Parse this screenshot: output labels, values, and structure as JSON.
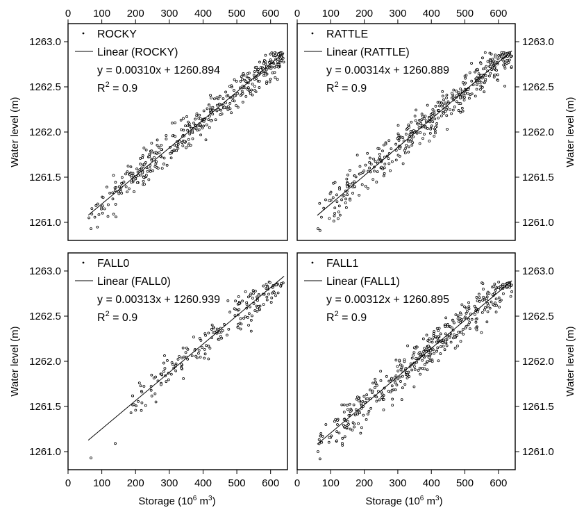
{
  "figure": {
    "x_axis_title": "Storage (10",
    "x_axis_title_sup": "6",
    "x_axis_title_unit": " m",
    "x_axis_title_sup2": "3",
    "x_axis_title_end": ")",
    "y_axis_title": "Water level (m)"
  },
  "chart_data": [
    {
      "type": "scatter",
      "panel": "ROCKY",
      "series": [
        {
          "name": "ROCKY",
          "kind": "points",
          "n_points": 420
        },
        {
          "name": "Linear (ROCKY)",
          "kind": "trendline",
          "slope": 0.0031,
          "intercept": 1260.894
        }
      ],
      "equation_text": "y = 0.00310x + 1260.894",
      "r2_text": "= 0.9",
      "xlim": [
        0,
        650
      ],
      "ylim": [
        1260.8,
        1263.2
      ],
      "x_ticks": [
        0,
        100,
        200,
        300,
        400,
        500,
        600
      ],
      "y_ticks": [
        1261.0,
        1261.5,
        1262.0,
        1262.5,
        1263.0
      ],
      "x_range_data": [
        60,
        640
      ],
      "extra_points": [
        [
          62,
          1261.05
        ],
        [
          68,
          1260.93
        ],
        [
          108,
          1261.15
        ],
        [
          115,
          1261.39
        ],
        [
          135,
          1261.09
        ]
      ],
      "legend_position": "top-left"
    },
    {
      "type": "scatter",
      "panel": "RATTLE",
      "series": [
        {
          "name": "RATTLE",
          "kind": "points",
          "n_points": 420
        },
        {
          "name": "Linear (RATTLE)",
          "kind": "trendline",
          "slope": 0.00314,
          "intercept": 1260.889
        }
      ],
      "equation_text": "y = 0.00314x + 1260.889",
      "r2_text": "= 0.9",
      "xlim": [
        0,
        650
      ],
      "ylim": [
        1260.8,
        1263.2
      ],
      "x_ticks": [
        0,
        100,
        200,
        300,
        400,
        500,
        600
      ],
      "y_ticks": [
        1261.0,
        1261.5,
        1262.0,
        1262.5,
        1263.0
      ],
      "x_range_data": [
        60,
        640
      ],
      "extra_points": [
        [
          62,
          1260.93
        ],
        [
          68,
          1260.91
        ],
        [
          112,
          1261.1
        ],
        [
          128,
          1261.08
        ],
        [
          140,
          1261.3
        ]
      ],
      "legend_position": "top-left"
    },
    {
      "type": "scatter",
      "panel": "FALL0",
      "series": [
        {
          "name": "FALL0",
          "kind": "points",
          "n_points": 200
        },
        {
          "name": "Linear (FALL0)",
          "kind": "trendline",
          "slope": 0.00313,
          "intercept": 1260.939
        }
      ],
      "equation_text": "y = 0.00313x + 1260.939",
      "r2_text": "= 0.9",
      "xlim": [
        0,
        650
      ],
      "ylim": [
        1260.8,
        1263.2
      ],
      "x_ticks": [
        0,
        100,
        200,
        300,
        400,
        500,
        600
      ],
      "y_ticks": [
        1261.0,
        1261.5,
        1262.0,
        1262.5,
        1263.0
      ],
      "x_range_data": [
        180,
        640
      ],
      "extra_points": [
        [
          68,
          1260.93
        ],
        [
          140,
          1261.09
        ]
      ],
      "legend_position": "top-left"
    },
    {
      "type": "scatter",
      "panel": "FALL1",
      "series": [
        {
          "name": "FALL1",
          "kind": "points",
          "n_points": 420
        },
        {
          "name": "Linear (FALL1)",
          "kind": "trendline",
          "slope": 0.00312,
          "intercept": 1260.895
        }
      ],
      "equation_text": "y = 0.00312x + 1260.895",
      "r2_text": "= 0.9",
      "xlim": [
        0,
        650
      ],
      "ylim": [
        1260.8,
        1263.2
      ],
      "x_ticks": [
        0,
        100,
        200,
        300,
        400,
        500,
        600
      ],
      "y_ticks": [
        1261.0,
        1261.5,
        1262.0,
        1262.5,
        1263.0
      ],
      "x_range_data": [
        60,
        640
      ],
      "extra_points": [
        [
          62,
          1261.0
        ],
        [
          68,
          1260.92
        ],
        [
          118,
          1261.12
        ],
        [
          135,
          1261.07
        ],
        [
          120,
          1261.3
        ]
      ],
      "legend_position": "top-left"
    }
  ]
}
